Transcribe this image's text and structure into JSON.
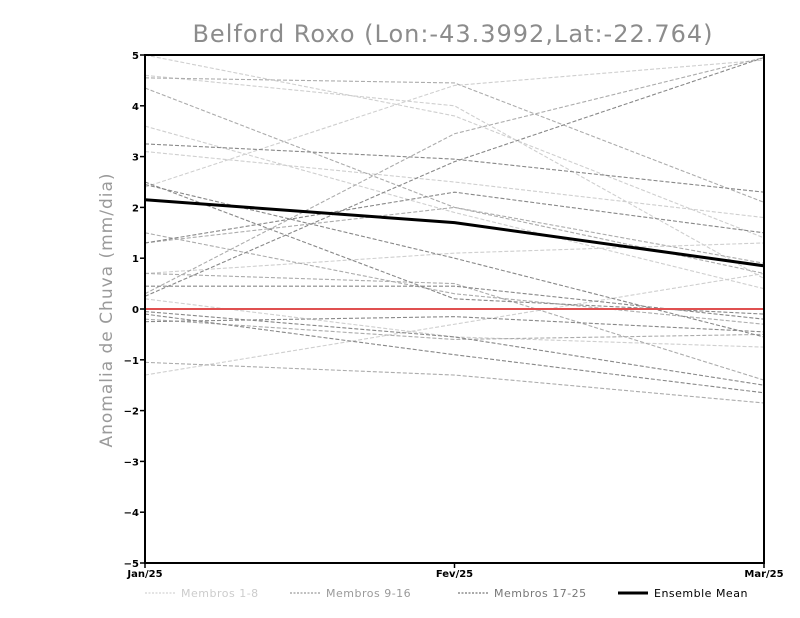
{
  "chart_data": {
    "type": "line",
    "title": "Belford Roxo (Lon:-43.3992,Lat:-22.764)",
    "ylabel": "Anomalia de Chuva (mm/dia)",
    "xlabel": "",
    "categories": [
      "Jan/25",
      "Fev/25",
      "Mar/25"
    ],
    "ylim": [
      -5,
      5
    ],
    "yticks": [
      -5,
      -4,
      -3,
      -2,
      -1,
      0,
      1,
      2,
      3,
      4,
      5
    ],
    "grid": false,
    "zero_line_color": "#e05050",
    "groups": [
      {
        "name": "Membros 1-8",
        "color": "#cfcfcf",
        "series": [
          {
            "values": [
              -1.3,
              -0.3,
              0.7
            ]
          },
          {
            "values": [
              2.4,
              4.4,
              4.9
            ]
          },
          {
            "values": [
              0.7,
              1.1,
              1.3
            ]
          },
          {
            "values": [
              3.6,
              1.9,
              0.4
            ]
          },
          {
            "values": [
              3.1,
              2.5,
              1.8
            ]
          },
          {
            "values": [
              0.2,
              -0.55,
              -0.75
            ]
          },
          {
            "values": [
              5.0,
              3.8,
              1.4
            ]
          },
          {
            "values": [
              4.6,
              4.0,
              0.6
            ]
          }
        ]
      },
      {
        "name": "Membros 9-16",
        "color": "#acacac",
        "series": [
          {
            "values": [
              1.3,
              2.0,
              0.9
            ]
          },
          {
            "values": [
              -0.2,
              -0.6,
              -0.5
            ]
          },
          {
            "values": [
              0.3,
              3.45,
              4.95
            ]
          },
          {
            "values": [
              4.55,
              4.45,
              2.1
            ]
          },
          {
            "values": [
              4.35,
              2.0,
              0.7
            ]
          },
          {
            "values": [
              -1.05,
              -1.3,
              -1.85
            ]
          },
          {
            "values": [
              0.7,
              0.5,
              -1.4
            ]
          },
          {
            "values": [
              1.5,
              0.3,
              -0.3
            ]
          }
        ]
      },
      {
        "name": "Membros 17-25",
        "color": "#888888",
        "series": [
          {
            "values": [
              -0.1,
              -0.9,
              -1.65
            ]
          },
          {
            "values": [
              2.5,
              0.2,
              -0.1
            ]
          },
          {
            "values": [
              0.25,
              2.9,
              4.95
            ]
          },
          {
            "values": [
              -0.25,
              -0.15,
              -0.45
            ]
          },
          {
            "values": [
              3.25,
              2.95,
              2.3
            ]
          },
          {
            "values": [
              1.3,
              2.3,
              1.5
            ]
          },
          {
            "values": [
              2.45,
              1.0,
              -0.55
            ]
          },
          {
            "values": [
              0.45,
              0.45,
              -0.2
            ]
          },
          {
            "values": [
              -0.05,
              -0.55,
              -1.5
            ]
          }
        ]
      }
    ],
    "ensemble_mean": {
      "name": "Ensemble Mean",
      "color": "#000000",
      "values": [
        2.15,
        1.7,
        0.85
      ]
    },
    "legend_placement": "bottom",
    "legend": [
      {
        "label": "Membros 1-8",
        "color": "#d4d4d4",
        "style": "dashed"
      },
      {
        "label": "Membros 9-16",
        "color": "#9a9a9a",
        "style": "dashed"
      },
      {
        "label": "Membros 17-25",
        "color": "#777777",
        "style": "dashed"
      },
      {
        "label": "Ensemble Mean",
        "color": "#000000",
        "style": "solid"
      }
    ]
  }
}
